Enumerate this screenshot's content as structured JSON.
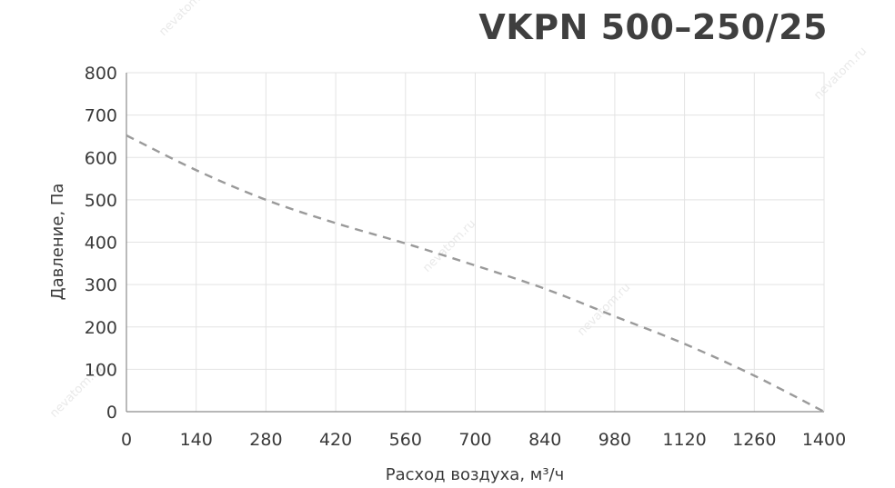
{
  "chart_data": {
    "type": "line",
    "title": "VKPN 500–250/25",
    "xlabel": "Расход воздуха, м³/ч",
    "ylabel": "Давление, Па",
    "xlim": [
      0,
      1400
    ],
    "ylim": [
      0,
      800
    ],
    "xticks": [
      0,
      140,
      280,
      420,
      560,
      700,
      840,
      980,
      1120,
      1260,
      1400
    ],
    "yticks": [
      0,
      100,
      200,
      300,
      400,
      500,
      600,
      700,
      800
    ],
    "grid": true,
    "series": [
      {
        "line_style": "dashed",
        "color": "#9a9a9a",
        "points": [
          [
            0,
            652
          ],
          [
            140,
            570
          ],
          [
            280,
            500
          ],
          [
            420,
            445
          ],
          [
            560,
            397
          ],
          [
            700,
            345
          ],
          [
            840,
            290
          ],
          [
            980,
            225
          ],
          [
            1120,
            160
          ],
          [
            1260,
            85
          ],
          [
            1400,
            0
          ]
        ]
      }
    ]
  },
  "watermarks": [
    "nevatom.ru",
    "nevatom.ru",
    "nevatom.ru",
    "nevatom.ru",
    "nevatom.ru"
  ]
}
